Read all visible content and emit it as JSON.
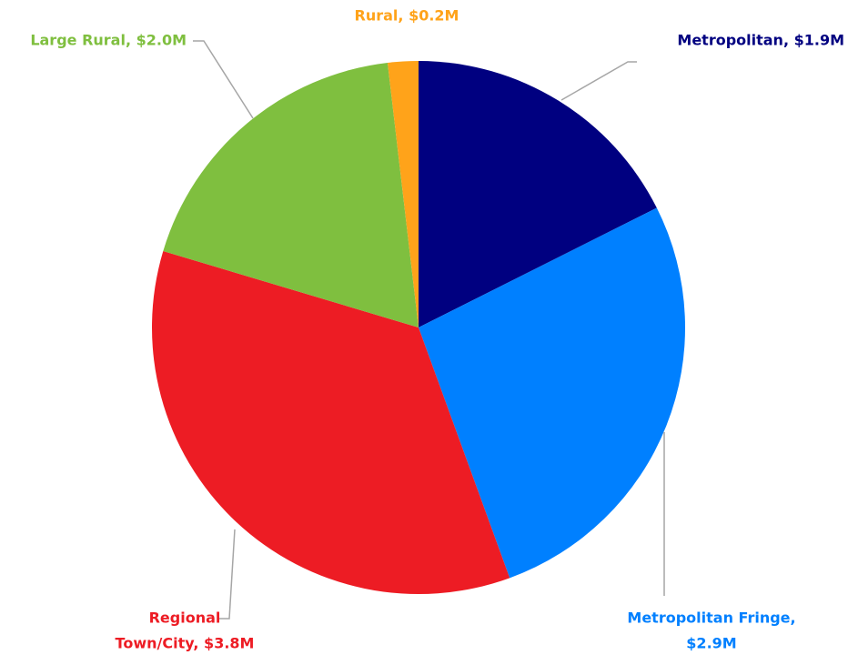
{
  "chart_data": {
    "type": "pie",
    "values": [
      1.9,
      2.9,
      3.8,
      2.0,
      0.2
    ],
    "value_labels": [
      [
        "Metropolitan, $1.9M"
      ],
      [
        "Metropolitan Fringe,",
        "$2.9M"
      ],
      [
        "Regional",
        "Town/City, $3.8M"
      ],
      [
        "Large Rural, $2.0M"
      ],
      [
        "Rural, $0.2M"
      ]
    ],
    "colors": [
      "#000080",
      "#0080ff",
      "#ed1c24",
      "#7fbf3f",
      "#ffa31a"
    ]
  }
}
